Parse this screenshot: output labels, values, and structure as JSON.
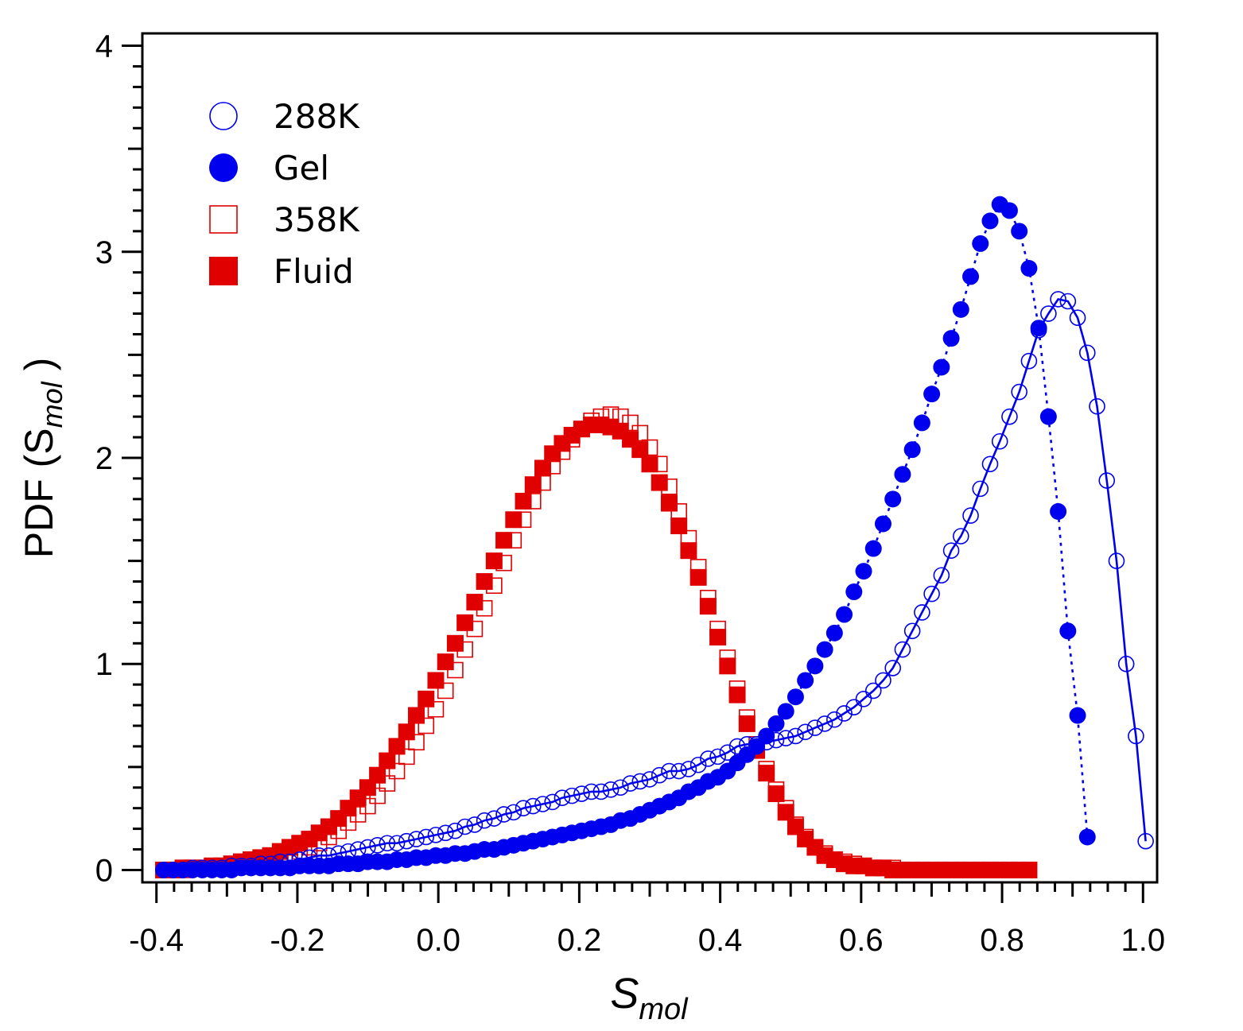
{
  "chart_data": {
    "type": "scatter",
    "title": "",
    "xlabel": {
      "base": "S",
      "sub": "mol"
    },
    "ylabel": {
      "prefix": "PDF (S",
      "sub": "mol",
      "suffix": " )"
    },
    "xlim": [
      -0.42,
      1.02
    ],
    "ylim": [
      -0.06,
      4.06
    ],
    "xticks": [
      -0.4,
      -0.2,
      0.0,
      0.2,
      0.4,
      0.6,
      0.8,
      1.0
    ],
    "xtick_labels": [
      "-0.4",
      "-0.2",
      "0.0",
      "0.2",
      "0.4",
      "0.6",
      "0.8",
      "1.0"
    ],
    "yticks": [
      0,
      1,
      2,
      3,
      4
    ],
    "ytick_labels": [
      "0",
      "1",
      "2",
      "3",
      "4"
    ],
    "legend_position": "top-left",
    "series": [
      {
        "name": "288K",
        "color": "#0000ee",
        "marker": "circle-open",
        "line": "solid",
        "x_start": -0.39,
        "x_step": 0.0138,
        "values": [
          0.0,
          0.0,
          0.0,
          0.01,
          0.01,
          0.01,
          0.01,
          0.02,
          0.02,
          0.02,
          0.03,
          0.03,
          0.04,
          0.04,
          0.05,
          0.06,
          0.07,
          0.07,
          0.08,
          0.09,
          0.1,
          0.11,
          0.12,
          0.13,
          0.13,
          0.14,
          0.15,
          0.16,
          0.17,
          0.18,
          0.19,
          0.21,
          0.22,
          0.24,
          0.25,
          0.27,
          0.28,
          0.3,
          0.31,
          0.32,
          0.33,
          0.35,
          0.36,
          0.37,
          0.38,
          0.38,
          0.39,
          0.4,
          0.42,
          0.43,
          0.44,
          0.46,
          0.48,
          0.48,
          0.49,
          0.51,
          0.54,
          0.55,
          0.57,
          0.6,
          0.61,
          0.61,
          0.62,
          0.63,
          0.64,
          0.65,
          0.67,
          0.69,
          0.71,
          0.73,
          0.76,
          0.79,
          0.83,
          0.87,
          0.92,
          0.98,
          1.07,
          1.16,
          1.25,
          1.34,
          1.43,
          1.55,
          1.62,
          1.72,
          1.85,
          1.97,
          2.08,
          2.2,
          2.32,
          2.47,
          2.62,
          2.7,
          2.77,
          2.76,
          2.68,
          2.51,
          2.25,
          1.89,
          1.5,
          1.0,
          0.65,
          0.14
        ]
      },
      {
        "name": "Gel",
        "color": "#0000ee",
        "marker": "circle-filled",
        "line": "dotted",
        "x_start": -0.39,
        "x_step": 0.0138,
        "values": [
          0.0,
          0.0,
          0.0,
          0.0,
          0.0,
          0.0,
          0.0,
          0.0,
          0.01,
          0.01,
          0.01,
          0.01,
          0.01,
          0.01,
          0.02,
          0.02,
          0.02,
          0.02,
          0.03,
          0.03,
          0.03,
          0.04,
          0.04,
          0.04,
          0.05,
          0.05,
          0.06,
          0.06,
          0.07,
          0.07,
          0.08,
          0.08,
          0.09,
          0.1,
          0.1,
          0.11,
          0.12,
          0.13,
          0.14,
          0.15,
          0.16,
          0.17,
          0.18,
          0.19,
          0.2,
          0.21,
          0.22,
          0.24,
          0.25,
          0.27,
          0.29,
          0.31,
          0.33,
          0.35,
          0.38,
          0.4,
          0.43,
          0.45,
          0.48,
          0.52,
          0.56,
          0.6,
          0.65,
          0.71,
          0.77,
          0.84,
          0.92,
          0.99,
          1.07,
          1.15,
          1.24,
          1.35,
          1.45,
          1.56,
          1.68,
          1.8,
          1.92,
          2.04,
          2.17,
          2.31,
          2.44,
          2.58,
          2.72,
          2.88,
          3.04,
          3.15,
          3.23,
          3.2,
          3.1,
          2.92,
          2.63,
          2.2,
          1.74,
          1.16,
          0.75,
          0.16
        ]
      },
      {
        "name": "358K",
        "color": "#e00000",
        "marker": "square-open",
        "line": "none",
        "x_start": -0.39,
        "x_step": 0.0138,
        "values": [
          0.0,
          0.0,
          0.0,
          0.01,
          0.01,
          0.01,
          0.02,
          0.02,
          0.03,
          0.04,
          0.04,
          0.05,
          0.06,
          0.08,
          0.09,
          0.11,
          0.13,
          0.16,
          0.19,
          0.23,
          0.27,
          0.31,
          0.36,
          0.42,
          0.48,
          0.55,
          0.62,
          0.7,
          0.78,
          0.87,
          0.97,
          1.07,
          1.17,
          1.27,
          1.38,
          1.49,
          1.6,
          1.7,
          1.79,
          1.88,
          1.96,
          2.03,
          2.09,
          2.14,
          2.18,
          2.2,
          2.21,
          2.2,
          2.17,
          2.12,
          2.05,
          1.97,
          1.86,
          1.74,
          1.61,
          1.47,
          1.32,
          1.17,
          1.03,
          0.88,
          0.74,
          0.61,
          0.49,
          0.39,
          0.3,
          0.22,
          0.16,
          0.11,
          0.08,
          0.05,
          0.04,
          0.03,
          0.02,
          0.01,
          0.01,
          0.01,
          0.0,
          0.0,
          0.0,
          0.0,
          0.0,
          0.0,
          0.0,
          0.0,
          0.0,
          0.0,
          0.0,
          0.0,
          0.0,
          0.0
        ]
      },
      {
        "name": "Fluid",
        "color": "#e00000",
        "marker": "square-filled",
        "line": "none",
        "x_start": -0.39,
        "x_step": 0.0138,
        "values": [
          0.0,
          0.0,
          0.01,
          0.01,
          0.01,
          0.02,
          0.02,
          0.03,
          0.04,
          0.05,
          0.06,
          0.07,
          0.09,
          0.11,
          0.13,
          0.15,
          0.18,
          0.21,
          0.25,
          0.3,
          0.35,
          0.4,
          0.46,
          0.53,
          0.6,
          0.67,
          0.75,
          0.83,
          0.92,
          1.01,
          1.1,
          1.2,
          1.3,
          1.4,
          1.5,
          1.6,
          1.7,
          1.79,
          1.87,
          1.95,
          2.02,
          2.07,
          2.11,
          2.14,
          2.16,
          2.16,
          2.15,
          2.13,
          2.09,
          2.04,
          1.97,
          1.88,
          1.78,
          1.67,
          1.55,
          1.42,
          1.28,
          1.13,
          0.99,
          0.85,
          0.71,
          0.58,
          0.47,
          0.37,
          0.28,
          0.21,
          0.15,
          0.11,
          0.07,
          0.05,
          0.03,
          0.02,
          0.02,
          0.01,
          0.01,
          0.0,
          0.0,
          0.0,
          0.0,
          0.0,
          0.0,
          0.0,
          0.0,
          0.0,
          0.0,
          0.0,
          0.0,
          0.0,
          0.0,
          0.0
        ]
      }
    ]
  }
}
